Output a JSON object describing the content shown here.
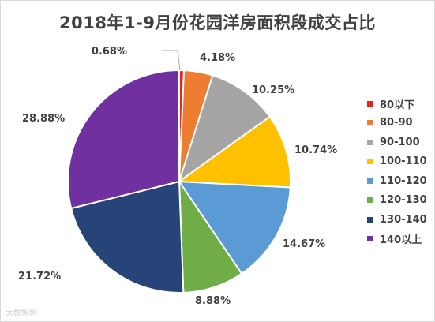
{
  "chart_data": {
    "type": "pie",
    "title": "2018年1-9月份花园洋房面积段成交占比",
    "categories": [
      "80以下",
      "80-90",
      "90-100",
      "100-110",
      "110-120",
      "120-130",
      "130-140",
      "140以上"
    ],
    "values": [
      0.68,
      4.18,
      10.25,
      10.74,
      14.67,
      8.88,
      21.72,
      28.88
    ],
    "data_labels": [
      "0.68%",
      "4.18%",
      "10.25%",
      "10.74%",
      "14.67%",
      "8.88%",
      "21.72%",
      "28.88%"
    ],
    "colors": [
      "#e8231e",
      "#ed7d31",
      "#a5a5a5",
      "#ffc000",
      "#5b9bd5",
      "#70ad47",
      "#264478",
      "#7030a0"
    ],
    "start_angle": "12 o'clock",
    "direction": "clockwise",
    "legend_position": "right"
  },
  "watermark": "大数据网"
}
